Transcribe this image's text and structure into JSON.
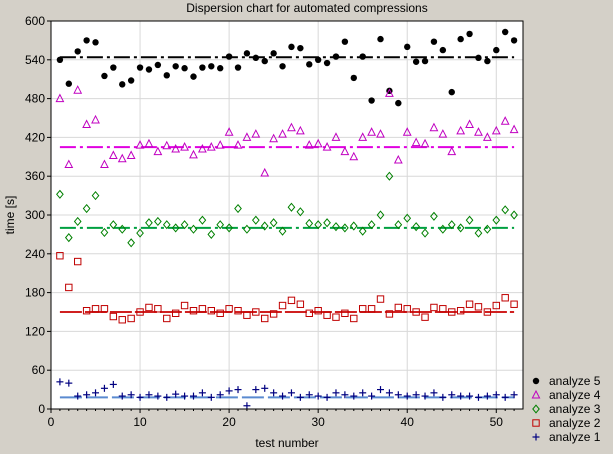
{
  "chart_data": {
    "type": "scatter",
    "title": "Dispersion chart for automated compressions",
    "xlabel": "test number",
    "ylabel": "time [s]",
    "xlim": [
      0,
      53
    ],
    "ylim": [
      0,
      600
    ],
    "xticks": [
      0,
      10,
      20,
      30,
      40,
      50
    ],
    "yticks": [
      0,
      60,
      120,
      180,
      240,
      300,
      360,
      420,
      480,
      540,
      600
    ],
    "grid": true,
    "legend_position": "bottom-right",
    "x": [
      1,
      2,
      3,
      4,
      5,
      6,
      7,
      8,
      9,
      10,
      11,
      12,
      13,
      14,
      15,
      16,
      17,
      18,
      19,
      20,
      21,
      22,
      23,
      24,
      25,
      26,
      27,
      28,
      29,
      30,
      31,
      32,
      33,
      34,
      35,
      36,
      37,
      38,
      39,
      40,
      41,
      42,
      43,
      44,
      45,
      46,
      47,
      48,
      49,
      50,
      51,
      52
    ],
    "series": [
      {
        "name": "analyze 5",
        "marker": "circle",
        "color": "#000000",
        "mean": 544,
        "values": [
          540,
          503,
          553,
          570,
          567,
          515,
          528,
          502,
          508,
          528,
          525,
          532,
          516,
          530,
          527,
          514,
          528,
          530,
          527,
          545,
          528,
          550,
          543,
          538,
          550,
          530,
          560,
          558,
          533,
          540,
          535,
          545,
          568,
          512,
          545,
          477,
          572,
          492,
          473,
          560,
          537,
          538,
          568,
          555,
          490,
          572,
          580,
          543,
          538,
          555,
          583,
          570
        ]
      },
      {
        "name": "analyze 4",
        "marker": "triangle",
        "color": "#c000c0",
        "mean": 405,
        "values": [
          480,
          378,
          493,
          440,
          447,
          378,
          392,
          387,
          392,
          408,
          410,
          398,
          407,
          402,
          405,
          393,
          402,
          405,
          408,
          428,
          408,
          420,
          425,
          365,
          418,
          425,
          435,
          430,
          408,
          410,
          405,
          420,
          398,
          390,
          420,
          428,
          425,
          488,
          385,
          428,
          412,
          410,
          435,
          425,
          398,
          430,
          440,
          428,
          420,
          430,
          445,
          432
        ]
      },
      {
        "name": "analyze 3",
        "marker": "diamond",
        "color": "#008000",
        "mean": 280,
        "values": [
          332,
          265,
          290,
          310,
          330,
          273,
          285,
          278,
          257,
          272,
          288,
          290,
          285,
          280,
          285,
          278,
          292,
          270,
          285,
          280,
          310,
          278,
          292,
          283,
          288,
          275,
          312,
          305,
          287,
          285,
          288,
          282,
          280,
          283,
          275,
          285,
          300,
          360,
          285,
          295,
          282,
          272,
          298,
          278,
          285,
          280,
          292,
          272,
          278,
          292,
          308,
          300
        ]
      },
      {
        "name": "analyze 2",
        "marker": "square",
        "color": "#c00000",
        "mean": 150,
        "values": [
          237,
          188,
          228,
          152,
          155,
          155,
          143,
          138,
          140,
          150,
          157,
          155,
          140,
          148,
          160,
          152,
          155,
          152,
          148,
          155,
          152,
          145,
          150,
          140,
          147,
          160,
          168,
          162,
          148,
          152,
          145,
          142,
          148,
          140,
          155,
          155,
          170,
          147,
          157,
          155,
          150,
          142,
          157,
          155,
          150,
          152,
          162,
          158,
          150,
          160,
          172,
          162
        ]
      },
      {
        "name": "analyze 1",
        "marker": "plus",
        "color": "#000080",
        "mean": 18,
        "values": [
          42,
          40,
          20,
          22,
          25,
          32,
          38,
          20,
          22,
          18,
          22,
          20,
          18,
          23,
          20,
          20,
          25,
          18,
          22,
          28,
          30,
          5,
          30,
          32,
          25,
          20,
          25,
          18,
          22,
          20,
          18,
          25,
          22,
          20,
          25,
          20,
          30,
          25,
          22,
          20,
          22,
          20,
          25,
          18,
          22,
          20,
          20,
          18,
          20,
          22,
          18,
          22
        ]
      }
    ]
  }
}
